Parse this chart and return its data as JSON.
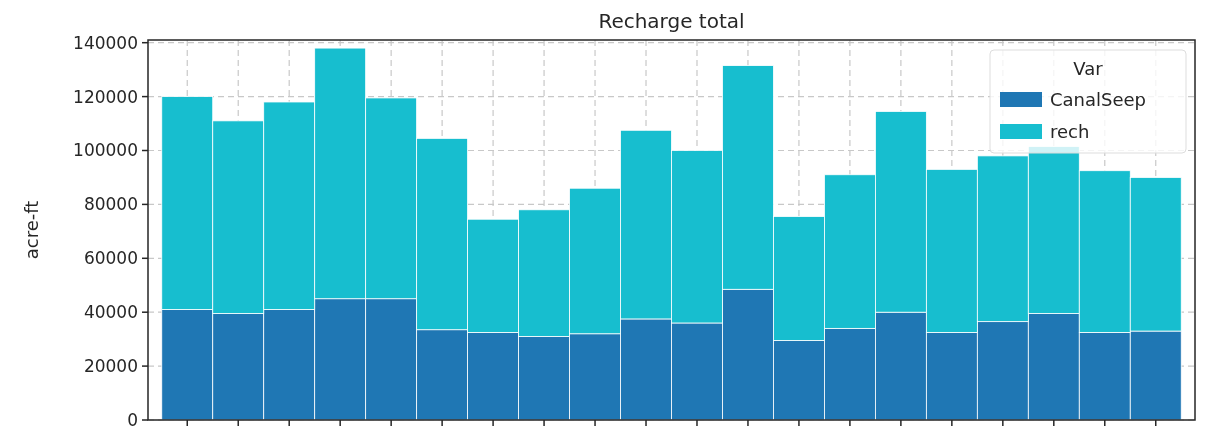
{
  "chart_data": {
    "type": "bar",
    "title": "Recharge total",
    "ylabel": "acre-ft",
    "legend_title": "Var",
    "stacked": true,
    "categories": [
      null,
      null,
      null,
      null,
      null,
      null,
      null,
      null,
      null,
      null,
      null,
      null,
      null,
      null,
      null,
      null,
      null,
      null,
      null,
      null
    ],
    "series": [
      {
        "name": "CanalSeep",
        "color": "#1f77b4",
        "values": [
          41000,
          39500,
          41000,
          45000,
          45000,
          33500,
          32500,
          31000,
          32000,
          37500,
          36000,
          48500,
          29500,
          34000,
          40000,
          32500,
          36500,
          39500,
          32500,
          33000
        ]
      },
      {
        "name": "rech",
        "color": "#17becf",
        "values": [
          79000,
          71500,
          77000,
          93000,
          74500,
          71000,
          42000,
          47000,
          54000,
          70000,
          64000,
          83000,
          46000,
          57000,
          74500,
          60500,
          61500,
          62000,
          60000,
          57000
        ]
      }
    ],
    "ylim": [
      0,
      141000
    ],
    "yticks": [
      0,
      20000,
      40000,
      60000,
      80000,
      100000,
      120000,
      140000
    ],
    "grid": true,
    "legend": "top right"
  }
}
